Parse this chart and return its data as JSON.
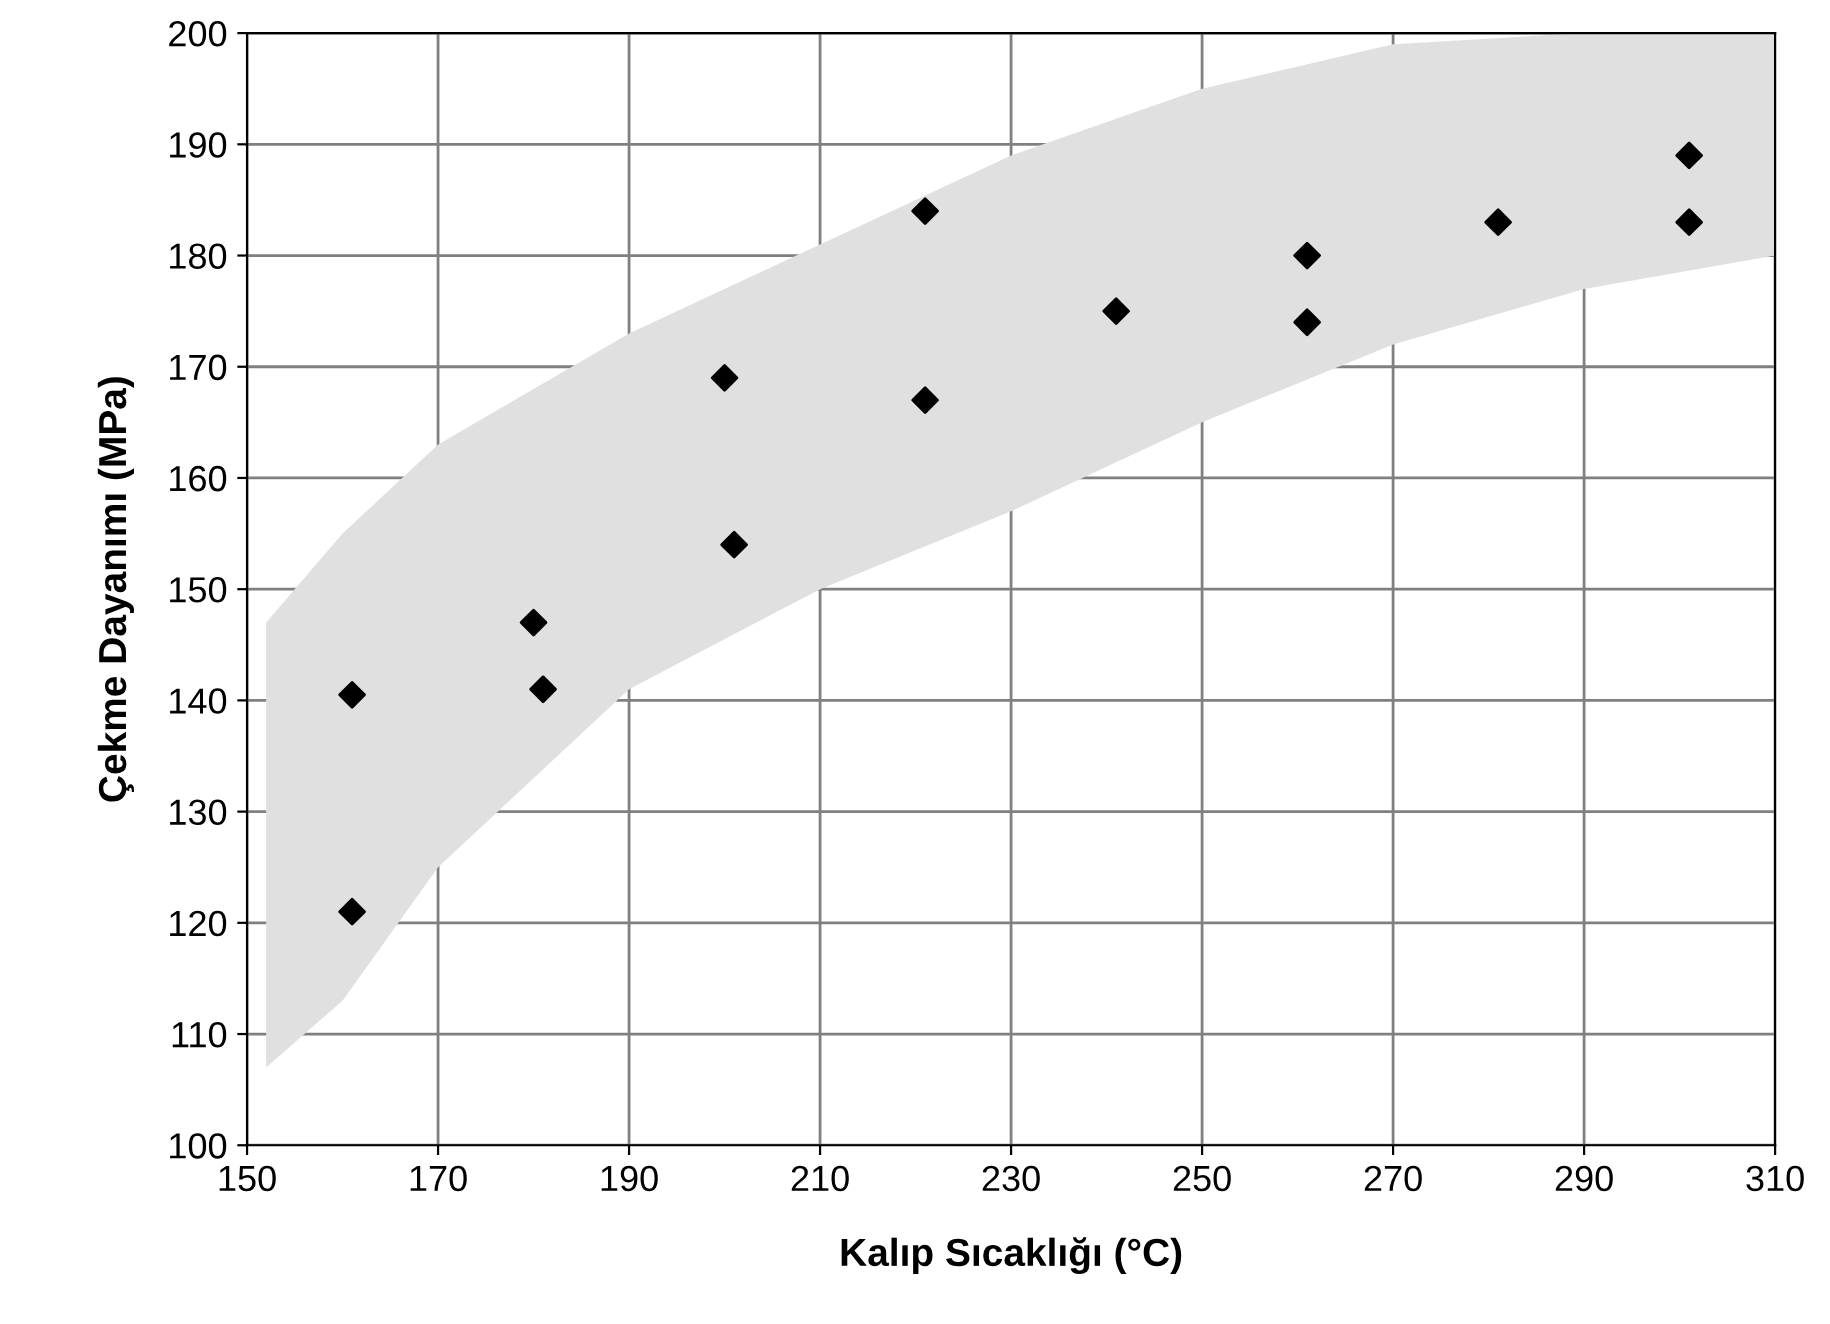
{
  "chart_data": {
    "type": "scatter",
    "xlabel": "Kalıp Sıcaklığı (°C)",
    "ylabel": "Çekme Dayanımı (MPa)",
    "xlim": [
      150,
      310
    ],
    "xticks": [
      150,
      170,
      190,
      210,
      230,
      250,
      270,
      290,
      310
    ],
    "ylim": [
      100,
      200
    ],
    "yticks": [
      100,
      110,
      120,
      130,
      140,
      150,
      160,
      170,
      180,
      190,
      200
    ],
    "grid": true,
    "series": [
      {
        "type": "line",
        "color": "#e0e0e0",
        "x": [
          152,
          160,
          170,
          180,
          190,
          210,
          230,
          250,
          270,
          290,
          310
        ],
        "values": [
          null,
          null,
          null,
          null,
          null,
          null,
          null,
          null,
          null,
          null,
          null
        ],
        "upper": [
          147,
          155,
          163,
          168,
          173,
          181,
          189,
          195,
          199,
          200,
          200
        ],
        "lower": [
          107,
          113,
          125,
          133,
          141,
          150,
          157,
          165,
          172,
          177,
          180
        ]
      },
      {
        "marker": "diamond",
        "color": "#000000",
        "x": [
          161,
          161,
          180,
          181,
          200,
          201,
          221,
          221,
          241,
          261,
          261,
          281,
          301,
          301
        ],
        "values": [
          140.5,
          121,
          147,
          141,
          169,
          154,
          184,
          167,
          175,
          180,
          174,
          183,
          189,
          183
        ]
      }
    ]
  }
}
